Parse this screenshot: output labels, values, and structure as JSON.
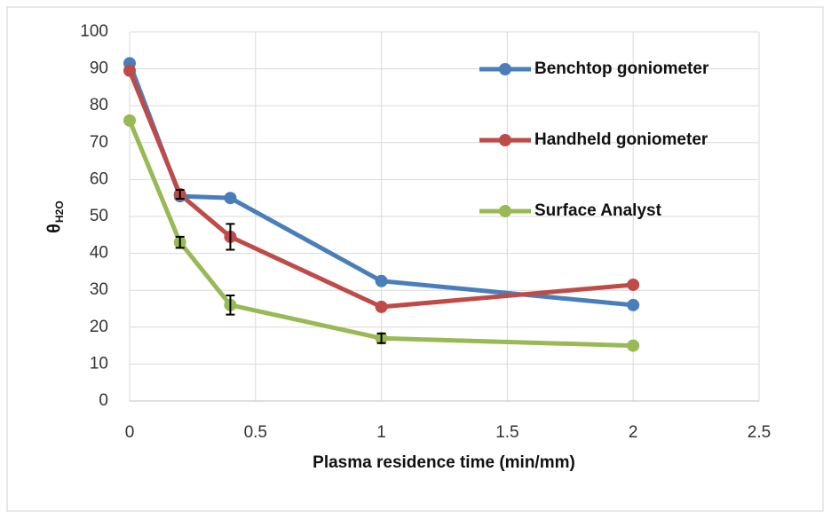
{
  "chart_data": {
    "type": "line",
    "x_label": "Plasma residence time (min/mm)",
    "y_label": "θ",
    "y_label_subscript": "H2O",
    "xlim": [
      0,
      2.5
    ],
    "xticks": [
      0,
      0.5,
      1,
      1.5,
      2,
      2.5
    ],
    "ylim": [
      0,
      100
    ],
    "yticks": [
      0,
      10,
      20,
      30,
      40,
      50,
      60,
      70,
      80,
      90,
      100
    ],
    "grid": true,
    "legend": "upper right",
    "x": [
      0,
      0.2,
      0.4,
      1,
      2
    ],
    "series": [
      {
        "name": "Benchtop goniometer",
        "color": "#4a7ebb",
        "values": [
          91.5,
          55.5,
          55,
          32.5,
          26
        ],
        "errors": [
          null,
          null,
          null,
          null,
          null
        ]
      },
      {
        "name": "Handheld goniometer",
        "color": "#be4b48",
        "values": [
          89.5,
          56,
          44.5,
          25.5,
          31.5
        ],
        "errors": [
          null,
          1.2,
          3.5,
          null,
          null
        ]
      },
      {
        "name": "Surface Analyst",
        "color": "#98b954",
        "values": [
          76,
          43,
          26,
          17,
          15
        ],
        "errors": [
          null,
          1.5,
          2.6,
          1.3,
          null
        ]
      }
    ]
  }
}
